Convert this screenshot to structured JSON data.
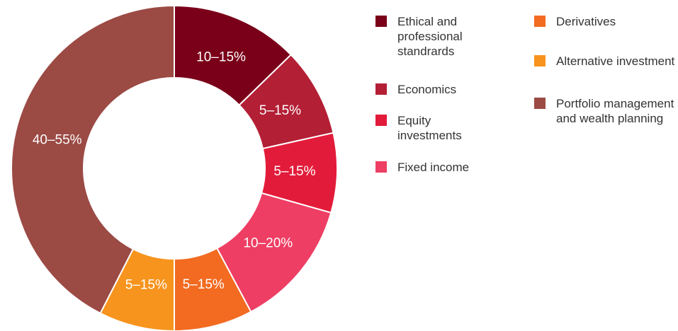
{
  "chart_data": {
    "type": "donut",
    "categories": [
      "Ethical and professional standrards",
      "Economics",
      "Equity investments",
      "Fixed income",
      "Derivatives",
      "Alternative investment",
      "Portfolio management and wealth planning"
    ],
    "values": [
      12.7,
      8.8,
      7.9,
      12.8,
      7.8,
      7.5,
      42.5
    ],
    "value_labels": [
      "10–15%",
      "5–15%",
      "5–15%",
      "10–20%",
      "5–15%",
      "5–15%",
      "40–55%"
    ],
    "colors": [
      "#7a0019",
      "#b31f35",
      "#e31b3a",
      "#ee3e64",
      "#f26b21",
      "#f7941d",
      "#9b4a44"
    ]
  }
}
